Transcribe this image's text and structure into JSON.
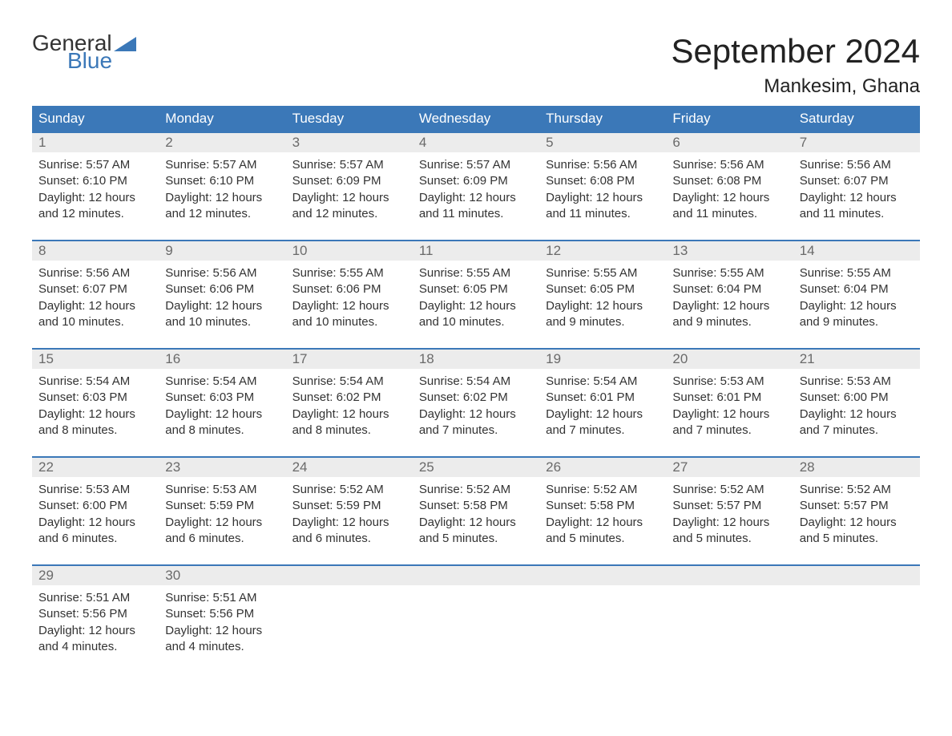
{
  "logo": {
    "general": "General",
    "blue": "Blue",
    "flag_color": "#3b78b8"
  },
  "title": {
    "month": "September 2024",
    "location": "Mankesim, Ghana"
  },
  "colors": {
    "header_bg": "#3b78b8",
    "header_text": "#ffffff",
    "daynum_bg": "#ececec",
    "daynum_text": "#6a6a6a",
    "body_text": "#333333",
    "week_border": "#3b78b8",
    "page_bg": "#ffffff"
  },
  "typography": {
    "month_title_pt": 42,
    "location_pt": 24,
    "day_header_pt": 17,
    "daynum_pt": 17,
    "body_pt": 15,
    "font_family": "Arial"
  },
  "day_labels": [
    "Sunday",
    "Monday",
    "Tuesday",
    "Wednesday",
    "Thursday",
    "Friday",
    "Saturday"
  ],
  "weeks": [
    [
      {
        "n": "1",
        "sunrise": "Sunrise: 5:57 AM",
        "sunset": "Sunset: 6:10 PM",
        "dl1": "Daylight: 12 hours",
        "dl2": "and 12 minutes."
      },
      {
        "n": "2",
        "sunrise": "Sunrise: 5:57 AM",
        "sunset": "Sunset: 6:10 PM",
        "dl1": "Daylight: 12 hours",
        "dl2": "and 12 minutes."
      },
      {
        "n": "3",
        "sunrise": "Sunrise: 5:57 AM",
        "sunset": "Sunset: 6:09 PM",
        "dl1": "Daylight: 12 hours",
        "dl2": "and 12 minutes."
      },
      {
        "n": "4",
        "sunrise": "Sunrise: 5:57 AM",
        "sunset": "Sunset: 6:09 PM",
        "dl1": "Daylight: 12 hours",
        "dl2": "and 11 minutes."
      },
      {
        "n": "5",
        "sunrise": "Sunrise: 5:56 AM",
        "sunset": "Sunset: 6:08 PM",
        "dl1": "Daylight: 12 hours",
        "dl2": "and 11 minutes."
      },
      {
        "n": "6",
        "sunrise": "Sunrise: 5:56 AM",
        "sunset": "Sunset: 6:08 PM",
        "dl1": "Daylight: 12 hours",
        "dl2": "and 11 minutes."
      },
      {
        "n": "7",
        "sunrise": "Sunrise: 5:56 AM",
        "sunset": "Sunset: 6:07 PM",
        "dl1": "Daylight: 12 hours",
        "dl2": "and 11 minutes."
      }
    ],
    [
      {
        "n": "8",
        "sunrise": "Sunrise: 5:56 AM",
        "sunset": "Sunset: 6:07 PM",
        "dl1": "Daylight: 12 hours",
        "dl2": "and 10 minutes."
      },
      {
        "n": "9",
        "sunrise": "Sunrise: 5:56 AM",
        "sunset": "Sunset: 6:06 PM",
        "dl1": "Daylight: 12 hours",
        "dl2": "and 10 minutes."
      },
      {
        "n": "10",
        "sunrise": "Sunrise: 5:55 AM",
        "sunset": "Sunset: 6:06 PM",
        "dl1": "Daylight: 12 hours",
        "dl2": "and 10 minutes."
      },
      {
        "n": "11",
        "sunrise": "Sunrise: 5:55 AM",
        "sunset": "Sunset: 6:05 PM",
        "dl1": "Daylight: 12 hours",
        "dl2": "and 10 minutes."
      },
      {
        "n": "12",
        "sunrise": "Sunrise: 5:55 AM",
        "sunset": "Sunset: 6:05 PM",
        "dl1": "Daylight: 12 hours",
        "dl2": "and 9 minutes."
      },
      {
        "n": "13",
        "sunrise": "Sunrise: 5:55 AM",
        "sunset": "Sunset: 6:04 PM",
        "dl1": "Daylight: 12 hours",
        "dl2": "and 9 minutes."
      },
      {
        "n": "14",
        "sunrise": "Sunrise: 5:55 AM",
        "sunset": "Sunset: 6:04 PM",
        "dl1": "Daylight: 12 hours",
        "dl2": "and 9 minutes."
      }
    ],
    [
      {
        "n": "15",
        "sunrise": "Sunrise: 5:54 AM",
        "sunset": "Sunset: 6:03 PM",
        "dl1": "Daylight: 12 hours",
        "dl2": "and 8 minutes."
      },
      {
        "n": "16",
        "sunrise": "Sunrise: 5:54 AM",
        "sunset": "Sunset: 6:03 PM",
        "dl1": "Daylight: 12 hours",
        "dl2": "and 8 minutes."
      },
      {
        "n": "17",
        "sunrise": "Sunrise: 5:54 AM",
        "sunset": "Sunset: 6:02 PM",
        "dl1": "Daylight: 12 hours",
        "dl2": "and 8 minutes."
      },
      {
        "n": "18",
        "sunrise": "Sunrise: 5:54 AM",
        "sunset": "Sunset: 6:02 PM",
        "dl1": "Daylight: 12 hours",
        "dl2": "and 7 minutes."
      },
      {
        "n": "19",
        "sunrise": "Sunrise: 5:54 AM",
        "sunset": "Sunset: 6:01 PM",
        "dl1": "Daylight: 12 hours",
        "dl2": "and 7 minutes."
      },
      {
        "n": "20",
        "sunrise": "Sunrise: 5:53 AM",
        "sunset": "Sunset: 6:01 PM",
        "dl1": "Daylight: 12 hours",
        "dl2": "and 7 minutes."
      },
      {
        "n": "21",
        "sunrise": "Sunrise: 5:53 AM",
        "sunset": "Sunset: 6:00 PM",
        "dl1": "Daylight: 12 hours",
        "dl2": "and 7 minutes."
      }
    ],
    [
      {
        "n": "22",
        "sunrise": "Sunrise: 5:53 AM",
        "sunset": "Sunset: 6:00 PM",
        "dl1": "Daylight: 12 hours",
        "dl2": "and 6 minutes."
      },
      {
        "n": "23",
        "sunrise": "Sunrise: 5:53 AM",
        "sunset": "Sunset: 5:59 PM",
        "dl1": "Daylight: 12 hours",
        "dl2": "and 6 minutes."
      },
      {
        "n": "24",
        "sunrise": "Sunrise: 5:52 AM",
        "sunset": "Sunset: 5:59 PM",
        "dl1": "Daylight: 12 hours",
        "dl2": "and 6 minutes."
      },
      {
        "n": "25",
        "sunrise": "Sunrise: 5:52 AM",
        "sunset": "Sunset: 5:58 PM",
        "dl1": "Daylight: 12 hours",
        "dl2": "and 5 minutes."
      },
      {
        "n": "26",
        "sunrise": "Sunrise: 5:52 AM",
        "sunset": "Sunset: 5:58 PM",
        "dl1": "Daylight: 12 hours",
        "dl2": "and 5 minutes."
      },
      {
        "n": "27",
        "sunrise": "Sunrise: 5:52 AM",
        "sunset": "Sunset: 5:57 PM",
        "dl1": "Daylight: 12 hours",
        "dl2": "and 5 minutes."
      },
      {
        "n": "28",
        "sunrise": "Sunrise: 5:52 AM",
        "sunset": "Sunset: 5:57 PM",
        "dl1": "Daylight: 12 hours",
        "dl2": "and 5 minutes."
      }
    ],
    [
      {
        "n": "29",
        "sunrise": "Sunrise: 5:51 AM",
        "sunset": "Sunset: 5:56 PM",
        "dl1": "Daylight: 12 hours",
        "dl2": "and 4 minutes."
      },
      {
        "n": "30",
        "sunrise": "Sunrise: 5:51 AM",
        "sunset": "Sunset: 5:56 PM",
        "dl1": "Daylight: 12 hours",
        "dl2": "and 4 minutes."
      },
      {
        "n": "",
        "sunrise": "",
        "sunset": "",
        "dl1": "",
        "dl2": ""
      },
      {
        "n": "",
        "sunrise": "",
        "sunset": "",
        "dl1": "",
        "dl2": ""
      },
      {
        "n": "",
        "sunrise": "",
        "sunset": "",
        "dl1": "",
        "dl2": ""
      },
      {
        "n": "",
        "sunrise": "",
        "sunset": "",
        "dl1": "",
        "dl2": ""
      },
      {
        "n": "",
        "sunrise": "",
        "sunset": "",
        "dl1": "",
        "dl2": ""
      }
    ]
  ]
}
